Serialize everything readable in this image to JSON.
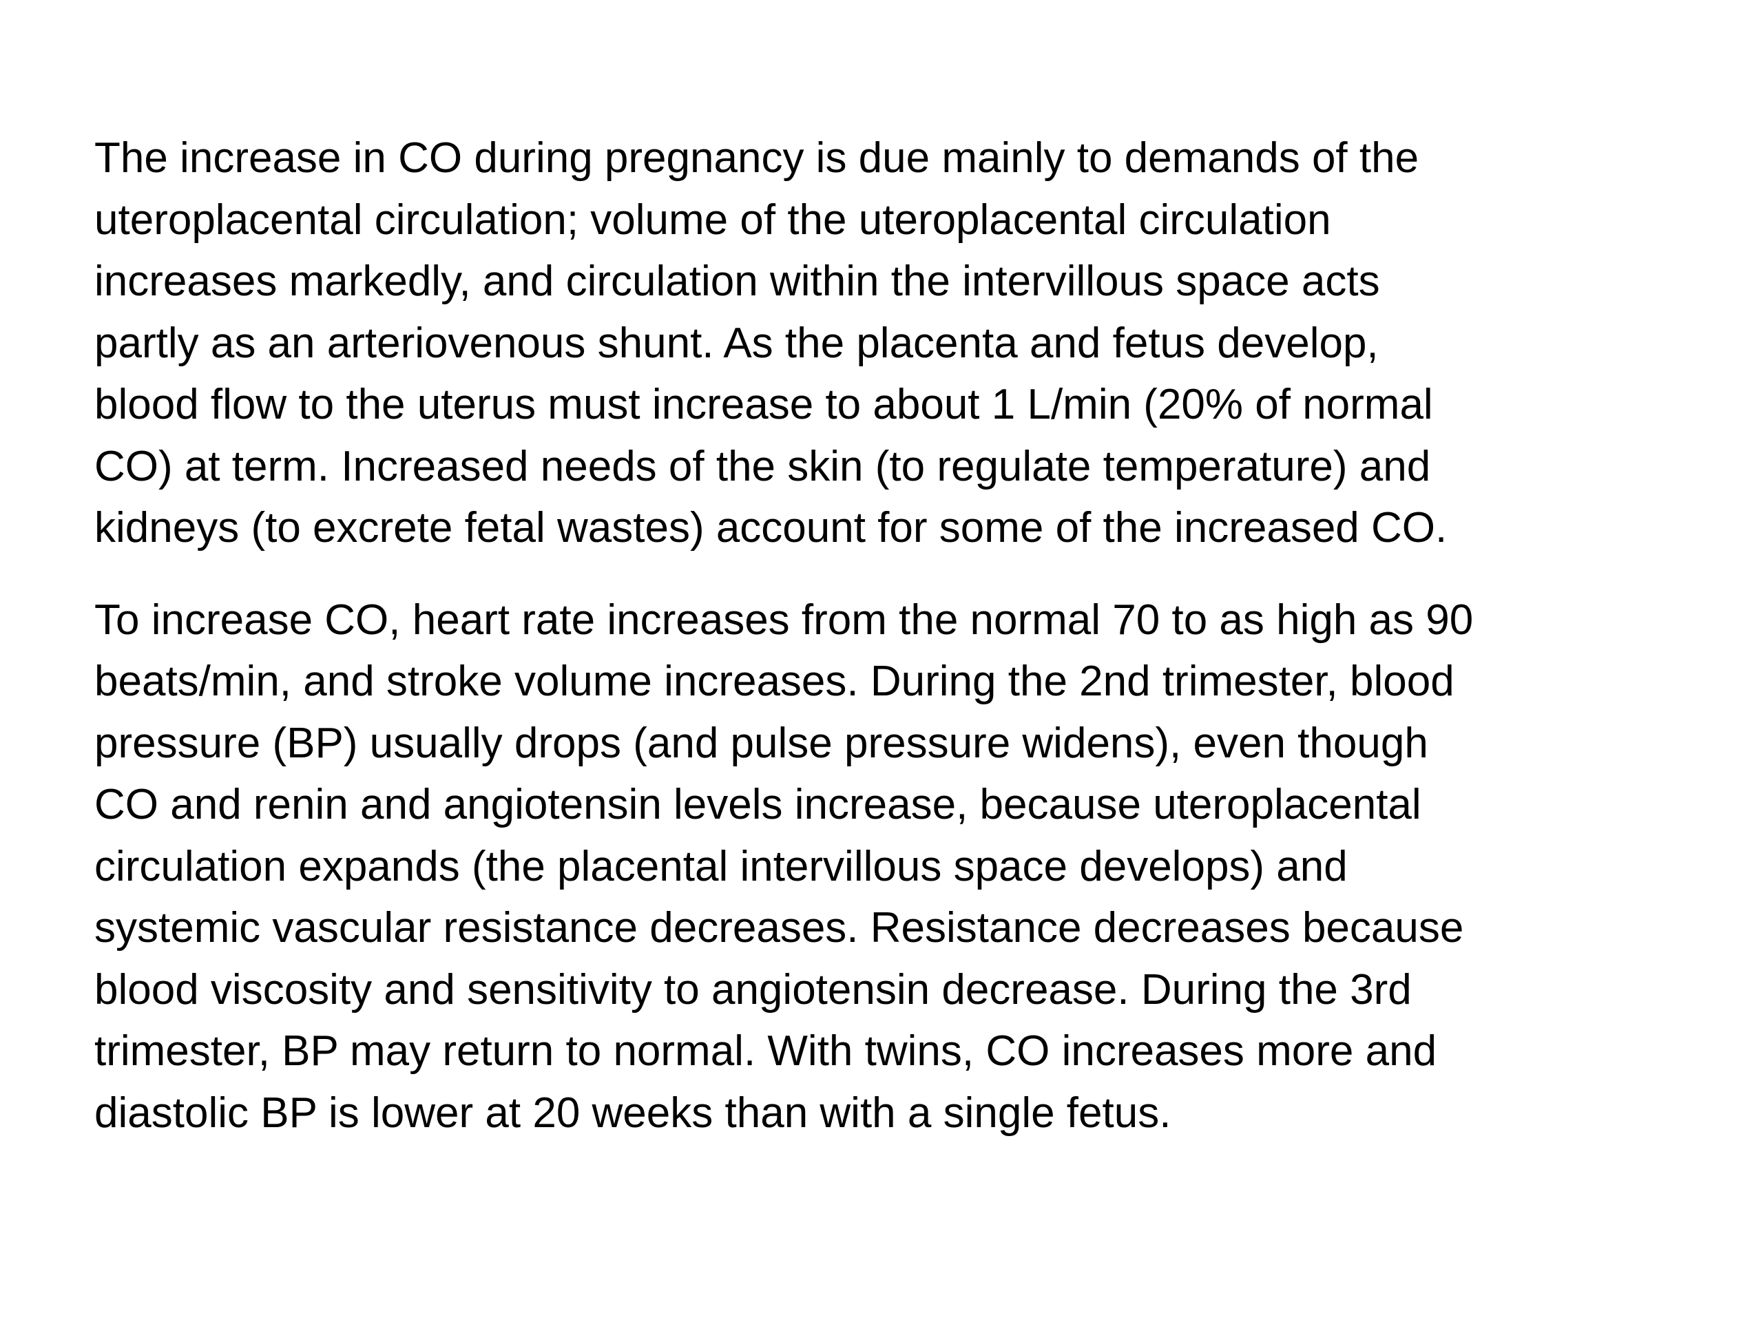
{
  "document": {
    "paragraphs": [
      {
        "lines": [
          "The increase in CO during pregnancy is due mainly to demands of the",
          "uteroplacental circulation; volume of the uteroplacental circulation",
          "increases markedly, and circulation within the intervillous space acts",
          "partly as an arteriovenous shunt. As the placenta and fetus develop,",
          "blood flow to the uterus must increase to about 1 L/min (20% of normal",
          "CO) at term. Increased needs of the skin (to regulate temperature) and",
          "kidneys (to excrete fetal wastes) account for some of the increased CO."
        ]
      },
      {
        "lines": [
          "To increase CO, heart rate increases from the normal 70 to as high as 90",
          "beats/min, and stroke volume increases. During the 2nd trimester, blood",
          "pressure (BP) usually drops (and pulse pressure widens), even though",
          "CO and renin and angiotensin levels increase, because uteroplacental",
          "circulation expands (the placental intervillous space develops) and",
          "systemic vascular resistance decreases. Resistance decreases because",
          "blood viscosity and sensitivity to angiotensin decrease. During the 3rd",
          "trimester, BP may return to normal. With twins, CO increases more and",
          "diastolic BP is lower at 20 weeks than with a single fetus."
        ]
      }
    ]
  }
}
